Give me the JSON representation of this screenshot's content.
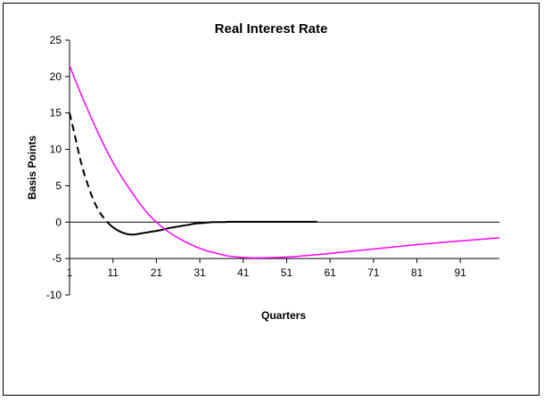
{
  "chart_data": {
    "type": "line",
    "title": "Real Interest Rate",
    "xlabel": "Quarters",
    "ylabel": "Basis Points",
    "xlim": [
      1,
      100
    ],
    "ylim": [
      -10,
      25
    ],
    "x_ticks": [
      1,
      11,
      21,
      31,
      41,
      51,
      61,
      71,
      81,
      91
    ],
    "y_ticks": [
      25,
      20,
      15,
      10,
      5,
      0,
      -5,
      -10
    ],
    "grid": false,
    "legend": "none",
    "series": [
      {
        "style": "black dashed then solid",
        "color": "#000000",
        "x": [
          1,
          2,
          3,
          4,
          5,
          6,
          7,
          8,
          9,
          10,
          11,
          12,
          13,
          14,
          15,
          16,
          17,
          18,
          19,
          20,
          22,
          24,
          26,
          28,
          30,
          32,
          34,
          36,
          38,
          40,
          42,
          44,
          46,
          48,
          50,
          52,
          54,
          56,
          58
        ],
        "y": [
          15.0,
          12.5,
          9.8,
          7.4,
          5.5,
          3.8,
          2.4,
          1.3,
          0.5,
          -0.2,
          -0.7,
          -1.1,
          -1.4,
          -1.6,
          -1.7,
          -1.7,
          -1.6,
          -1.5,
          -1.4,
          -1.3,
          -1.1,
          -0.8,
          -0.6,
          -0.4,
          -0.2,
          -0.1,
          0.0,
          0.0,
          0.05,
          0.05,
          0.05,
          0.05,
          0.05,
          0.05,
          0.05,
          0.05,
          0.05,
          0.05,
          0.05
        ]
      },
      {
        "style": "magenta solid",
        "color": "#ff00ff",
        "x": [
          1,
          3,
          5,
          7,
          9,
          11,
          13,
          15,
          17,
          19,
          21,
          23,
          25,
          27,
          29,
          31,
          33,
          35,
          37,
          39,
          41,
          43,
          45,
          47,
          49,
          51,
          53,
          55,
          57,
          60,
          65,
          70,
          75,
          80,
          85,
          90,
          95,
          100
        ],
        "y": [
          21.5,
          18.5,
          15.7,
          13.0,
          10.5,
          8.2,
          6.2,
          4.4,
          2.7,
          1.2,
          0.0,
          -1.0,
          -1.8,
          -2.5,
          -3.1,
          -3.6,
          -4.0,
          -4.3,
          -4.6,
          -4.75,
          -4.85,
          -4.9,
          -4.9,
          -4.88,
          -4.85,
          -4.8,
          -4.72,
          -4.62,
          -4.52,
          -4.36,
          -4.05,
          -3.75,
          -3.45,
          -3.15,
          -2.88,
          -2.62,
          -2.4,
          -2.15
        ]
      }
    ]
  }
}
